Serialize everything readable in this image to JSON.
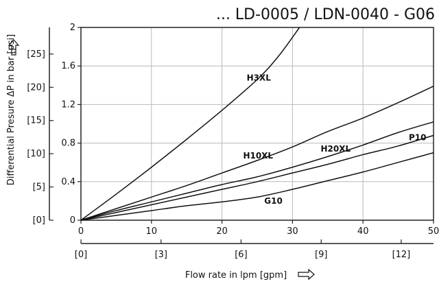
{
  "chart_data": {
    "type": "line",
    "title": "... LD-0005 / LDN-0040 - G06",
    "xlabel": "Flow rate in lpm [gpm]",
    "ylabel": "Differential Presure ΔP in bar [psi]",
    "xlim": [
      0,
      50
    ],
    "ylim": [
      0,
      2
    ],
    "x_ticks": [
      "0",
      "10",
      "20",
      "30",
      "40",
      "50"
    ],
    "y_ticks": [
      "0",
      "0.4",
      "0.8",
      "1.2",
      "1.6",
      "2"
    ],
    "x_secondary_ticks": [
      {
        "label": "[0]",
        "value": 0
      },
      {
        "label": "[3]",
        "value": 11.36
      },
      {
        "label": "[6]",
        "value": 22.71
      },
      {
        "label": "[9]",
        "value": 34.07
      },
      {
        "label": "[12]",
        "value": 45.42
      }
    ],
    "y_secondary_ticks": [
      {
        "label": "[0]",
        "value": 0
      },
      {
        "label": "[5]",
        "value": 0.345
      },
      {
        "label": "[10]",
        "value": 0.69
      },
      {
        "label": "[15]",
        "value": 1.034
      },
      {
        "label": "[20]",
        "value": 1.379
      },
      {
        "label": "[25]",
        "value": 1.724
      }
    ],
    "grid": true,
    "series": [
      {
        "name": "H3XL",
        "label_at": [
          23.5,
          1.45
        ],
        "points": [
          [
            0,
            0
          ],
          [
            5,
            0.27
          ],
          [
            10,
            0.55
          ],
          [
            15,
            0.84
          ],
          [
            20,
            1.14
          ],
          [
            25,
            1.46
          ],
          [
            28,
            1.7
          ],
          [
            31,
            2.0
          ]
        ]
      },
      {
        "name": "H10XL",
        "label_at": [
          23.0,
          0.64
        ],
        "points": [
          [
            0,
            0
          ],
          [
            5,
            0.12
          ],
          [
            10,
            0.24
          ],
          [
            15,
            0.36
          ],
          [
            20,
            0.49
          ],
          [
            25,
            0.62
          ],
          [
            30,
            0.76
          ],
          [
            35,
            0.92
          ],
          [
            40,
            1.06
          ],
          [
            45,
            1.22
          ],
          [
            50,
            1.39
          ]
        ]
      },
      {
        "name": "H20XL",
        "label_at": [
          34.0,
          0.71
        ],
        "points": [
          [
            0,
            0
          ],
          [
            5,
            0.1
          ],
          [
            10,
            0.19
          ],
          [
            15,
            0.28
          ],
          [
            20,
            0.37
          ],
          [
            25,
            0.45
          ],
          [
            30,
            0.55
          ],
          [
            35,
            0.66
          ],
          [
            40,
            0.78
          ],
          [
            45,
            0.91
          ],
          [
            50,
            1.02
          ]
        ]
      },
      {
        "name": "P10",
        "label_at": [
          46.5,
          0.83
        ],
        "points": [
          [
            0,
            0
          ],
          [
            5,
            0.08
          ],
          [
            10,
            0.16
          ],
          [
            15,
            0.24
          ],
          [
            20,
            0.32
          ],
          [
            25,
            0.4
          ],
          [
            30,
            0.49
          ],
          [
            35,
            0.58
          ],
          [
            40,
            0.68
          ],
          [
            45,
            0.77
          ],
          [
            50,
            0.88
          ]
        ]
      },
      {
        "name": "G10",
        "label_at": [
          26.0,
          0.17
        ],
        "points": [
          [
            0,
            0
          ],
          [
            5,
            0.05
          ],
          [
            10,
            0.1
          ],
          [
            15,
            0.15
          ],
          [
            20,
            0.19
          ],
          [
            25,
            0.24
          ],
          [
            30,
            0.32
          ],
          [
            35,
            0.41
          ],
          [
            40,
            0.5
          ],
          [
            45,
            0.6
          ],
          [
            50,
            0.7
          ]
        ]
      }
    ]
  }
}
